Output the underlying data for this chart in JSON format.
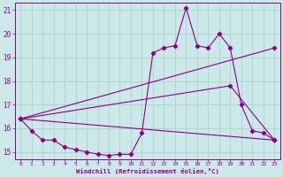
{
  "xlabel": "Windchill (Refroidissement éolien,°C)",
  "bg_color": "#cce8e8",
  "grid_color": "#aacccc",
  "line_color": "#880088",
  "xlim": [
    -0.5,
    23.5
  ],
  "ylim": [
    14.7,
    21.3
  ],
  "yticks": [
    15,
    16,
    17,
    18,
    19,
    20,
    21
  ],
  "xticks": [
    0,
    1,
    2,
    3,
    4,
    5,
    6,
    7,
    8,
    9,
    10,
    11,
    12,
    13,
    14,
    15,
    16,
    17,
    18,
    19,
    20,
    21,
    22,
    23
  ],
  "series1_x": [
    0,
    1,
    2,
    3,
    4,
    5,
    6,
    7,
    8,
    9,
    10,
    11,
    12,
    13,
    14,
    15,
    16,
    17,
    18,
    19,
    20,
    21,
    22,
    23
  ],
  "series1_y": [
    16.4,
    15.9,
    15.5,
    15.5,
    15.2,
    15.1,
    15.0,
    14.9,
    14.85,
    14.9,
    14.9,
    15.8,
    19.2,
    19.4,
    19.5,
    21.1,
    19.5,
    19.4,
    20.0,
    19.4,
    17.0,
    15.9,
    15.8,
    15.5
  ],
  "series2_x": [
    0,
    23
  ],
  "series2_y": [
    16.4,
    19.4
  ],
  "series3_x": [
    0,
    19,
    23
  ],
  "series3_y": [
    16.4,
    17.8,
    15.5
  ],
  "series4_x": [
    0,
    23
  ],
  "series4_y": [
    16.4,
    15.5
  ]
}
